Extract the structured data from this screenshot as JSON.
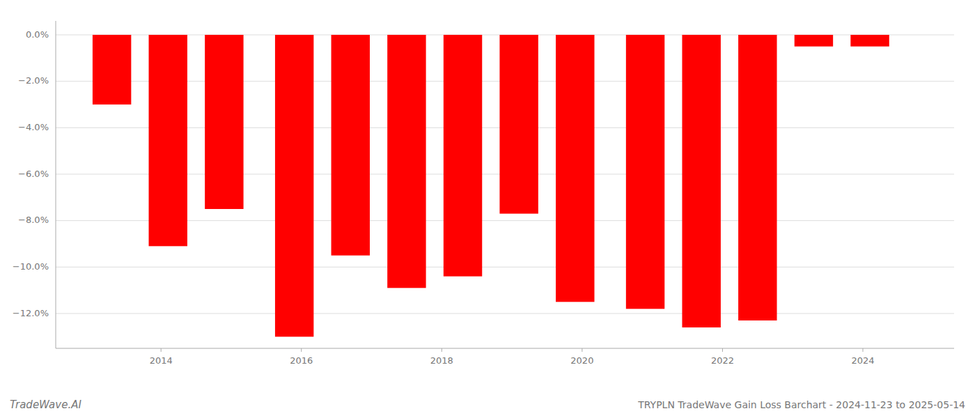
{
  "chart_data": {
    "type": "bar",
    "title": "TRYPLN TradeWave Gain Loss Barchart - 2024-11-23 to 2025-05-14",
    "annotations": [
      "TradeWave.AI"
    ],
    "x": [
      2013.3,
      2014.1,
      2014.9,
      2015.9,
      2016.7,
      2017.5,
      2018.3,
      2019.1,
      2019.9,
      2020.9,
      2021.7,
      2022.5,
      2023.3,
      2024.1
    ],
    "values": [
      -0.03,
      -0.091,
      -0.075,
      -0.13,
      -0.095,
      -0.109,
      -0.104,
      -0.077,
      -0.115,
      -0.118,
      -0.126,
      -0.123,
      -0.005,
      -0.005
    ],
    "color": "#ff0000",
    "xlim": [
      2012.5,
      2025.3
    ],
    "xticks": [
      2014,
      2016,
      2018,
      2020,
      2022,
      2024
    ],
    "ylim": [
      -0.135,
      0.006
    ],
    "yticks": [
      {
        "value": 0.0,
        "label": "0.0%"
      },
      {
        "value": -0.02,
        "label": "−2.0%"
      },
      {
        "value": -0.04,
        "label": "−4.0%"
      },
      {
        "value": -0.06,
        "label": "−6.0%"
      },
      {
        "value": -0.08,
        "label": "−8.0%"
      },
      {
        "value": -0.1,
        "label": "−10.0%"
      },
      {
        "value": -0.12,
        "label": "−12.0%"
      }
    ],
    "grid": true
  }
}
